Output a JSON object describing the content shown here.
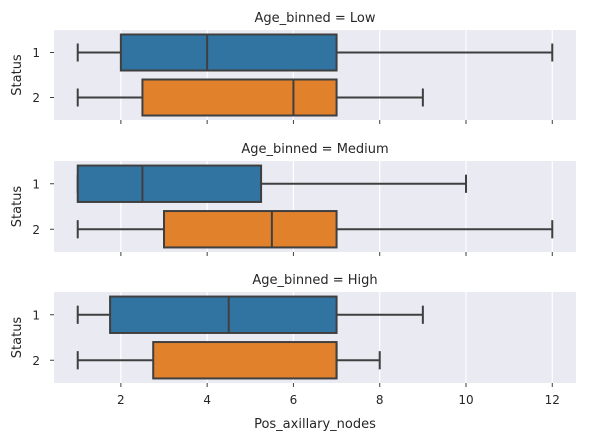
{
  "chart_data": {
    "type": "box",
    "orientation": "horizontal",
    "xlabel": "Pos_axillary_nodes",
    "ylabel": "Status",
    "xlim": [
      0.45,
      12.55
    ],
    "xticks": [
      2,
      4,
      6,
      8,
      10,
      12
    ],
    "categories": [
      "1",
      "2"
    ],
    "colors": {
      "1": "#3274a1",
      "2": "#e1812c"
    },
    "background": "#eaeaf2",
    "grid": true,
    "panels": [
      {
        "title": "Age_binned = Low",
        "boxes": [
          {
            "category": "1",
            "whisker_low": 1,
            "q1": 2,
            "median": 4,
            "q3": 7,
            "whisker_high": 12
          },
          {
            "category": "2",
            "whisker_low": 1,
            "q1": 2.5,
            "median": 6,
            "q3": 7,
            "whisker_high": 9
          }
        ]
      },
      {
        "title": "Age_binned = Medium",
        "boxes": [
          {
            "category": "1",
            "whisker_low": 1,
            "q1": 1,
            "median": 2.5,
            "q3": 5.25,
            "whisker_high": 10
          },
          {
            "category": "2",
            "whisker_low": 1,
            "q1": 3,
            "median": 5.5,
            "q3": 7,
            "whisker_high": 12
          }
        ]
      },
      {
        "title": "Age_binned = High",
        "boxes": [
          {
            "category": "1",
            "whisker_low": 1,
            "q1": 1.75,
            "median": 4.5,
            "q3": 7,
            "whisker_high": 9
          },
          {
            "category": "2",
            "whisker_low": 1,
            "q1": 2.75,
            "median": 7,
            "q3": 7,
            "whisker_high": 8
          }
        ]
      }
    ]
  }
}
